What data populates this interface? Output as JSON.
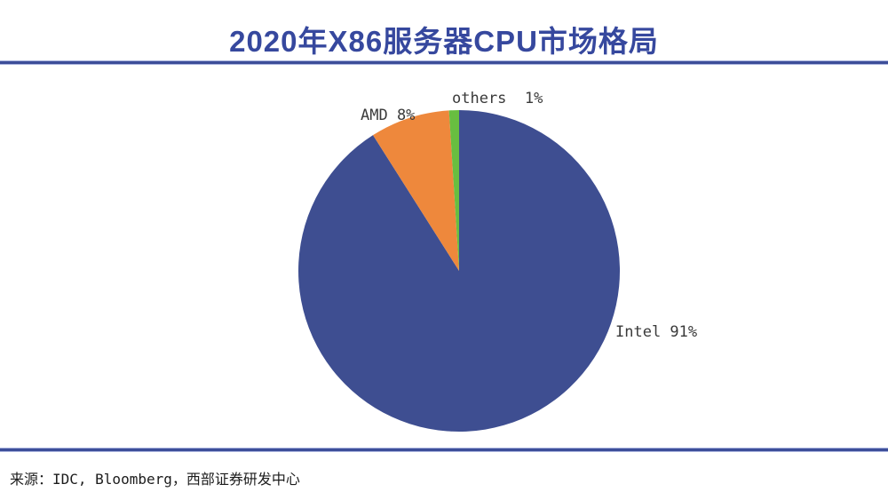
{
  "title": "2020年X86服务器CPU市场格局",
  "source_note": "来源：IDC, Bloomberg，西部证券研发中心",
  "colors": {
    "title_blue": "#36489E",
    "rule_blue": "#3D4E99",
    "rule_halo": "#AAB4DE",
    "label_text": "#3A3A3A",
    "source_text": "#1C1C1C"
  },
  "chart_data": {
    "type": "pie",
    "title": "2020年X86服务器CPU市场格局",
    "start_angle": "12-oclock",
    "direction": "clockwise",
    "legend_position": "none",
    "slices": [
      {
        "name": "Intel",
        "value_pct": 91,
        "label": "Intel 91%",
        "color": "#3E4E91"
      },
      {
        "name": "AMD",
        "value_pct": 8,
        "label": "AMD 8%",
        "color": "#EE883C"
      },
      {
        "name": "others",
        "value_pct": 1,
        "label": "others  1%",
        "color": "#68BE40"
      }
    ]
  }
}
